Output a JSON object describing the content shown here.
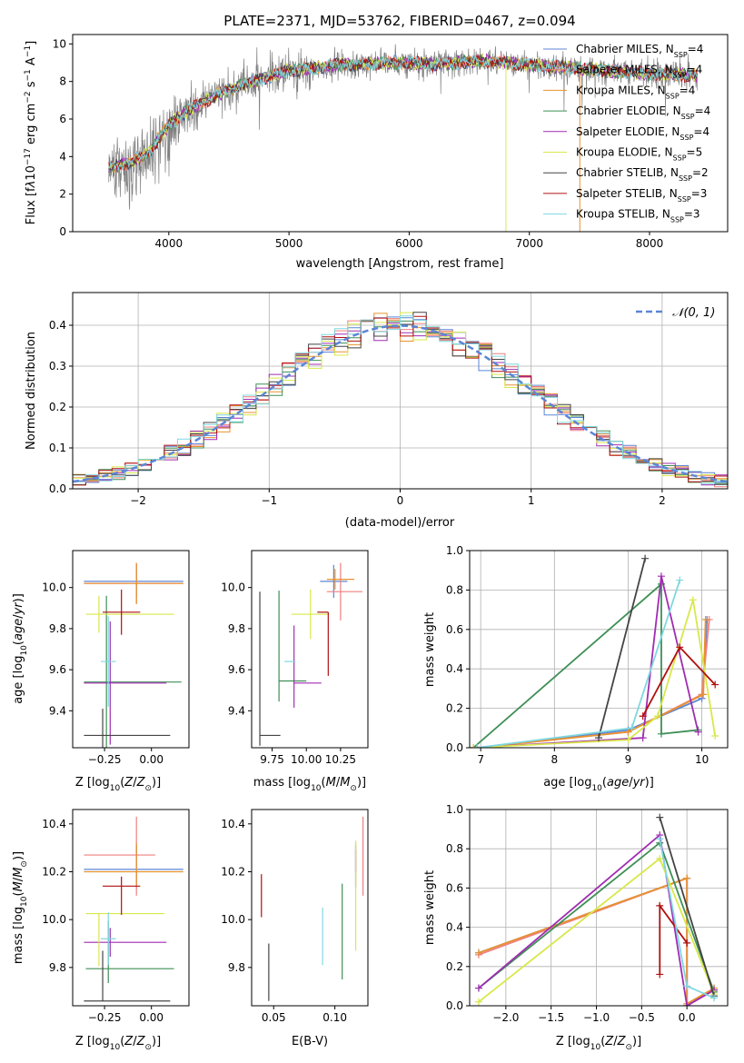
{
  "figure_title": "PLATE=2371, MJD=53762, FIBERID=0467, z=0.094",
  "models": [
    {
      "imf": "Chabrier",
      "lib": "MILES",
      "nssp": "4",
      "color": "#5b86d6"
    },
    {
      "imf": "Salpeter",
      "lib": "MILES",
      "nssp": "4",
      "color": "#f07f7f"
    },
    {
      "imf": "Kroupa",
      "lib": "MILES",
      "nssp": "4",
      "color": "#e8922e"
    },
    {
      "imf": "Chabrier",
      "lib": "ELODIE",
      "nssp": "4",
      "color": "#3e8f56"
    },
    {
      "imf": "Salpeter",
      "lib": "ELODIE",
      "nssp": "4",
      "color": "#a02cb2"
    },
    {
      "imf": "Kroupa",
      "lib": "ELODIE",
      "nssp": "5",
      "color": "#d8e84a"
    },
    {
      "imf": "Chabrier",
      "lib": "STELIB",
      "nssp": "2",
      "color": "#444444"
    },
    {
      "imf": "Salpeter",
      "lib": "STELIB",
      "nssp": "3",
      "color": "#b01010"
    },
    {
      "imf": "Kroupa",
      "lib": "STELIB",
      "nssp": "3",
      "color": "#7fd7e0"
    }
  ],
  "chart_data": [
    {
      "id": "spectrum",
      "type": "line",
      "xlabel": "wavelength [Angstrom, rest frame]",
      "ylabel": "Flux [f_λ 10^-17 erg cm^-2 s^-1 A^-1]",
      "xlim": [
        3200,
        8650
      ],
      "ylim": [
        0,
        10.5
      ],
      "xticks": [
        4000,
        5000,
        6000,
        7000,
        8000
      ],
      "yticks": [
        0,
        2,
        4,
        6,
        8,
        10
      ],
      "legend_position": "upper-right",
      "data_color": "#808080",
      "model_continuum": {
        "x": [
          3500,
          3700,
          3850,
          4000,
          4200,
          4400,
          4600,
          4800,
          5000,
          5200,
          5400,
          5600,
          5800,
          6000,
          6200,
          6400,
          6600,
          6800,
          7000,
          7200,
          7400,
          7600,
          7800,
          8000,
          8200,
          8400
        ],
        "y": [
          3.4,
          3.7,
          4.3,
          5.7,
          6.6,
          7.3,
          7.8,
          8.2,
          8.6,
          8.7,
          8.9,
          8.9,
          9.0,
          9.0,
          8.9,
          9.0,
          9.1,
          9.0,
          8.9,
          8.8,
          8.7,
          8.6,
          8.5,
          8.4,
          8.4,
          8.3
        ]
      }
    },
    {
      "id": "residuals",
      "type": "histogram",
      "xlabel": "(data-model)/error",
      "ylabel": "Normed distribution",
      "xlim": [
        -2.5,
        2.5
      ],
      "ylim": [
        0,
        0.48
      ],
      "xticks": [
        -2,
        -1,
        0,
        1,
        2
      ],
      "yticks": [
        0.0,
        0.1,
        0.2,
        0.3,
        0.4
      ],
      "bin_width": 0.1,
      "reference_label": "𝒩(0, 1)",
      "reference_color": "#5b86d6",
      "grid": true
    },
    {
      "id": "age-vs-z",
      "type": "errorbar",
      "xlabel": "Z [log10(Z/Z⊙)]",
      "ylabel": "age  [log10(age/yr)]",
      "xlim": [
        -0.42,
        0.2
      ],
      "ylim": [
        9.22,
        10.18
      ],
      "xticks": [
        -0.25,
        0.0
      ],
      "yticks": [
        9.4,
        9.6,
        9.8,
        10.0
      ],
      "points": [
        {
          "x": -0.08,
          "y": 10.03,
          "xl": 0.28,
          "xh": 0.25,
          "yl": 0.08,
          "yh": 0.08,
          "color": "#5b86d6"
        },
        {
          "x": -0.08,
          "y": 10.02,
          "xl": 0.28,
          "xh": 0.25,
          "yl": 0.1,
          "yh": 0.1,
          "color": "#f07f7f"
        },
        {
          "x": -0.08,
          "y": 10.02,
          "xl": 0.28,
          "xh": 0.25,
          "yl": 0.1,
          "yh": 0.1,
          "color": "#e8922e"
        },
        {
          "x": -0.24,
          "y": 9.54,
          "xl": 0.12,
          "xh": 0.4,
          "yl": 0.42,
          "yh": 0.42,
          "color": "#3e8f56"
        },
        {
          "x": -0.22,
          "y": 9.535,
          "xl": 0.14,
          "xh": 0.3,
          "yl": 0.3,
          "yh": 0.3,
          "color": "#a02cb2"
        },
        {
          "x": -0.28,
          "y": 9.87,
          "xl": 0.07,
          "xh": 0.4,
          "yl": 0.09,
          "yh": 0.09,
          "color": "#d8e84a"
        },
        {
          "x": -0.26,
          "y": 9.28,
          "xl": 0.1,
          "xh": 0.36,
          "yl": 0.13,
          "yh": 0.13,
          "color": "#444444"
        },
        {
          "x": -0.16,
          "y": 9.88,
          "xl": 0.1,
          "xh": 0.1,
          "yl": 0.11,
          "yh": 0.11,
          "color": "#b01010"
        },
        {
          "x": -0.23,
          "y": 9.64,
          "xl": 0.04,
          "xh": 0.04,
          "yl": 0.22,
          "yh": 0.22,
          "color": "#7fd7e0"
        }
      ]
    },
    {
      "id": "age-vs-mass",
      "type": "errorbar",
      "xlabel": "mass [log10(M/M⊙)]",
      "ylabel": "",
      "xlim": [
        9.6,
        10.45
      ],
      "ylim": [
        9.22,
        10.18
      ],
      "xticks": [
        9.75,
        10.0,
        10.25
      ],
      "yticks": [
        9.4,
        9.6,
        9.8,
        10.0
      ],
      "points": [
        {
          "x": 10.2,
          "y": 10.03,
          "xl": 0.1,
          "xh": 0.1,
          "yl": 0.08,
          "yh": 0.08,
          "color": "#5b86d6"
        },
        {
          "x": 10.25,
          "y": 9.98,
          "xl": 0.1,
          "xh": 0.16,
          "yl": 0.14,
          "yh": 0.14,
          "color": "#f07f7f"
        },
        {
          "x": 10.21,
          "y": 10.04,
          "xl": 0.06,
          "xh": 0.14,
          "yl": 0.05,
          "yh": 0.05,
          "color": "#e8922e"
        },
        {
          "x": 9.8,
          "y": 9.545,
          "xl": 0.0,
          "xh": 0.2,
          "yl": 0.1,
          "yh": 0.44,
          "color": "#3e8f56"
        },
        {
          "x": 9.91,
          "y": 9.535,
          "xl": 0.0,
          "xh": 0.2,
          "yl": 0.12,
          "yh": 0.28,
          "color": "#a02cb2"
        },
        {
          "x": 10.03,
          "y": 9.87,
          "xl": 0.14,
          "xh": 0.14,
          "yl": 0.12,
          "yh": 0.12,
          "color": "#d8e84a"
        },
        {
          "x": 9.66,
          "y": 9.28,
          "xl": 0.0,
          "xh": 0.15,
          "yl": 0.05,
          "yh": 0.7,
          "color": "#444444"
        },
        {
          "x": 10.16,
          "y": 9.88,
          "xl": 0.08,
          "xh": 0.0,
          "yl": 0.31,
          "yh": 0.0,
          "color": "#b01010"
        },
        {
          "x": 9.92,
          "y": 9.64,
          "xl": 0.08,
          "xh": 0.0,
          "yl": 0.0,
          "yh": 0.0,
          "color": "#7fd7e0"
        }
      ]
    },
    {
      "id": "weight-vs-age",
      "type": "line",
      "xlabel": "age  [log10(age/yr)]",
      "ylabel": "mass weight",
      "xlim": [
        6.85,
        10.35
      ],
      "ylim": [
        0.0,
        1.0
      ],
      "xticks": [
        7,
        8,
        9,
        10
      ],
      "yticks": [
        0.0,
        0.2,
        0.4,
        0.6,
        0.8,
        1.0
      ],
      "grid": true,
      "series": [
        {
          "color": "#5b86d6",
          "x": [
            6.95,
            9.0,
            10.0,
            10.07
          ],
          "y": [
            0.0,
            0.09,
            0.25,
            0.65
          ]
        },
        {
          "color": "#f07f7f",
          "x": [
            6.95,
            9.0,
            10.0,
            10.1
          ],
          "y": [
            0.0,
            0.08,
            0.27,
            0.65
          ]
        },
        {
          "color": "#e8922e",
          "x": [
            6.95,
            9.0,
            10.02,
            10.05
          ],
          "y": [
            0.0,
            0.08,
            0.27,
            0.65
          ]
        },
        {
          "color": "#3e8f56",
          "x": [
            6.9,
            9.45,
            9.45,
            9.95
          ],
          "y": [
            0.0,
            0.83,
            0.07,
            0.09
          ]
        },
        {
          "color": "#a02cb2",
          "x": [
            6.9,
            9.2,
            9.45,
            9.95
          ],
          "y": [
            0.0,
            0.05,
            0.87,
            0.08
          ]
        },
        {
          "color": "#d8e84a",
          "x": [
            6.9,
            9.0,
            9.4,
            9.88,
            10.18
          ],
          "y": [
            0.0,
            0.04,
            0.16,
            0.75,
            0.06
          ]
        },
        {
          "color": "#444444",
          "x": [
            8.6,
            9.23
          ],
          "y": [
            0.05,
            0.96
          ]
        },
        {
          "color": "#b01010",
          "x": [
            9.2,
            9.7,
            10.18
          ],
          "y": [
            0.16,
            0.51,
            0.32
          ]
        },
        {
          "color": "#7fd7e0",
          "x": [
            6.95,
            9.05,
            9.7
          ],
          "y": [
            0.0,
            0.1,
            0.85
          ]
        }
      ]
    },
    {
      "id": "mass-vs-z",
      "type": "errorbar",
      "xlabel": "Z [log10(Z/Z⊙)]",
      "ylabel": "mass [log10(M/M⊙)]",
      "xlim": [
        -0.42,
        0.2
      ],
      "ylim": [
        9.64,
        10.46
      ],
      "xticks": [
        -0.25,
        0.0
      ],
      "yticks": [
        9.8,
        10.0,
        10.2,
        10.4
      ],
      "points": [
        {
          "x": -0.08,
          "y": 10.21,
          "xl": 0.28,
          "xh": 0.25,
          "yl": 0.08,
          "yh": 0.1,
          "color": "#5b86d6"
        },
        {
          "x": -0.08,
          "y": 10.27,
          "xl": 0.28,
          "xh": 0.1,
          "yl": 0.17,
          "yh": 0.16,
          "color": "#f07f7f"
        },
        {
          "x": -0.08,
          "y": 10.2,
          "xl": 0.28,
          "xh": 0.25,
          "yl": 0.06,
          "yh": 0.12,
          "color": "#e8922e"
        },
        {
          "x": -0.23,
          "y": 9.795,
          "xl": 0.12,
          "xh": 0.35,
          "yl": 0.06,
          "yh": 0.2,
          "color": "#3e8f56"
        },
        {
          "x": -0.22,
          "y": 9.905,
          "xl": 0.14,
          "xh": 0.3,
          "yl": 0.06,
          "yh": 0.06,
          "color": "#a02cb2"
        },
        {
          "x": -0.28,
          "y": 10.025,
          "xl": 0.07,
          "xh": 0.35,
          "yl": 0.22,
          "yh": 0.0,
          "color": "#d8e84a"
        },
        {
          "x": -0.26,
          "y": 9.66,
          "xl": 0.1,
          "xh": 0.36,
          "yl": 0.0,
          "yh": 0.21,
          "color": "#444444"
        },
        {
          "x": -0.16,
          "y": 10.14,
          "xl": 0.1,
          "xh": 0.1,
          "yl": 0.12,
          "yh": 0.04,
          "color": "#b01010"
        },
        {
          "x": -0.23,
          "y": 9.92,
          "xl": 0.04,
          "xh": 0.04,
          "yl": 0.11,
          "yh": 0.11,
          "color": "#7fd7e0"
        }
      ]
    },
    {
      "id": "mass-vs-ebv",
      "type": "errorbar",
      "xlabel": "E(B-V)",
      "ylabel": "",
      "xlim": [
        0.032,
        0.127
      ],
      "ylim": [
        9.64,
        10.46
      ],
      "xticks": [
        0.05,
        0.1
      ],
      "yticks": [
        9.8,
        10.0,
        10.2,
        10.4
      ],
      "points": [
        {
          "x": 0.117,
          "y": 10.21,
          "xl": 0.0,
          "xh": 0.0,
          "yl": 0.08,
          "yh": 0.1,
          "color": "#5b86d6"
        },
        {
          "x": 0.123,
          "y": 10.27,
          "xl": 0.0,
          "xh": 0.0,
          "yl": 0.17,
          "yh": 0.16,
          "color": "#f07f7f"
        },
        {
          "x": 0.117,
          "y": 10.2,
          "xl": 0.0,
          "xh": 0.0,
          "yl": 0.06,
          "yh": 0.12,
          "color": "#e8922e"
        },
        {
          "x": 0.106,
          "y": 9.95,
          "xl": 0.0,
          "xh": 0.0,
          "yl": 0.2,
          "yh": 0.2,
          "color": "#3e8f56"
        },
        {
          "x": 0.117,
          "y": 10.25,
          "xl": 0.0,
          "xh": 0.0,
          "yl": 0.05,
          "yh": 0.04,
          "color": "#a02cb2"
        },
        {
          "x": 0.117,
          "y": 10.1,
          "xl": 0.0,
          "xh": 0.0,
          "yl": 0.23,
          "yh": 0.23,
          "color": "#d8e84a"
        },
        {
          "x": 0.046,
          "y": 9.78,
          "xl": 0.0,
          "xh": 0.0,
          "yl": 0.12,
          "yh": 0.12,
          "color": "#444444"
        },
        {
          "x": 0.04,
          "y": 10.1,
          "xl": 0.0,
          "xh": 0.0,
          "yl": 0.09,
          "yh": 0.09,
          "color": "#b01010"
        },
        {
          "x": 0.09,
          "y": 9.93,
          "xl": 0.0,
          "xh": 0.0,
          "yl": 0.12,
          "yh": 0.12,
          "color": "#7fd7e0"
        }
      ]
    },
    {
      "id": "weight-vs-z",
      "type": "line",
      "xlabel": "Z [log10(Z/Z⊙)]",
      "ylabel": "mass weight",
      "xlim": [
        -2.4,
        0.45
      ],
      "ylim": [
        0.0,
        1.0
      ],
      "xticks": [
        -2.0,
        -1.5,
        -1.0,
        -0.5,
        0.0
      ],
      "yticks": [
        0.0,
        0.2,
        0.4,
        0.6,
        0.8,
        1.0
      ],
      "grid": true,
      "series": [
        {
          "color": "#5b86d6",
          "x": [
            -2.3,
            0.0,
            0.0,
            0.3
          ],
          "y": [
            0.27,
            0.65,
            0.0,
            0.09
          ]
        },
        {
          "color": "#f07f7f",
          "x": [
            -2.3,
            0.0,
            0.0,
            0.3
          ],
          "y": [
            0.26,
            0.65,
            0.0,
            0.08
          ]
        },
        {
          "color": "#e8922e",
          "x": [
            -2.3,
            0.0,
            0.0,
            0.3
          ],
          "y": [
            0.27,
            0.65,
            0.01,
            0.09
          ]
        },
        {
          "color": "#3e8f56",
          "x": [
            -2.3,
            -0.3,
            0.3
          ],
          "y": [
            0.09,
            0.83,
            0.07
          ]
        },
        {
          "color": "#a02cb2",
          "x": [
            -2.3,
            -0.3,
            0.0,
            0.3
          ],
          "y": [
            0.09,
            0.87,
            0.0,
            0.08
          ]
        },
        {
          "color": "#d8e84a",
          "x": [
            -2.3,
            -0.3,
            0.3
          ],
          "y": [
            0.02,
            0.75,
            0.06
          ]
        },
        {
          "color": "#444444",
          "x": [
            -0.3,
            0.3
          ],
          "y": [
            0.96,
            0.05
          ]
        },
        {
          "color": "#b01010",
          "x": [
            -0.3,
            -0.3,
            0.0
          ],
          "y": [
            0.16,
            0.51,
            0.32
          ]
        },
        {
          "color": "#7fd7e0",
          "x": [
            -0.3,
            0.0,
            0.3
          ],
          "y": [
            0.85,
            0.1,
            0.04
          ]
        }
      ]
    }
  ]
}
